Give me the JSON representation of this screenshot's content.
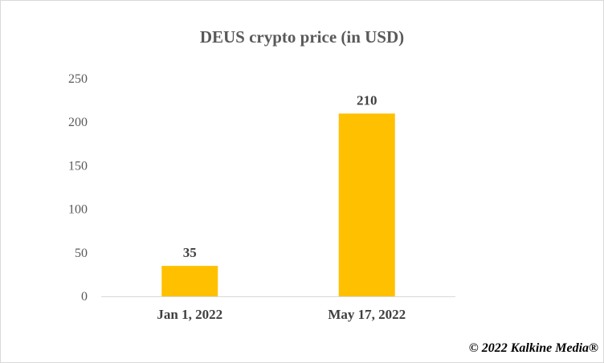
{
  "chart_data": {
    "type": "bar",
    "title": "DEUS crypto price (in USD)",
    "categories": [
      "Jan 1, 2022",
      "May 17, 2022"
    ],
    "values": [
      35,
      210
    ],
    "data_labels": [
      "35",
      "210"
    ],
    "ylim": [
      0,
      250
    ],
    "yticks": [
      0,
      50,
      100,
      150,
      200,
      250
    ],
    "xlabel": "",
    "ylabel": "",
    "grid": false,
    "legend": "none",
    "bar_color": "#FFC000"
  },
  "footer": {
    "copyright": "© 2022 Kalkine Media®"
  }
}
